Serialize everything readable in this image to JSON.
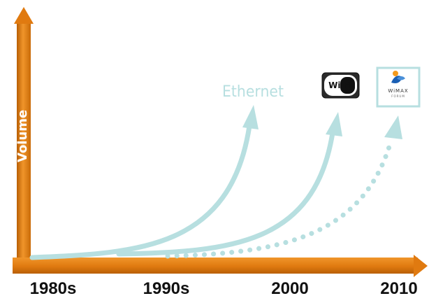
{
  "colors": {
    "axis_orange": "#e07a10",
    "axis_orange_dark": "#b95f05",
    "curve": "#b7dfe0",
    "text_dark": "#111111"
  },
  "axes": {
    "y_label": "Volume",
    "x_ticks": [
      "1980s",
      "1990s",
      "2000",
      "2010"
    ]
  },
  "curves": {
    "ethernet": {
      "label": "Ethernet",
      "style": "solid"
    },
    "wifi": {
      "style": "solid"
    },
    "wimax": {
      "style": "dotted"
    }
  },
  "logos": {
    "wifi": {
      "icon": "wifi-logo-icon",
      "text": "Wi Fi"
    },
    "wimax": {
      "icon": "wimax-forum-logo-icon",
      "text": "WiMAX",
      "subtext": "FORUM"
    }
  }
}
